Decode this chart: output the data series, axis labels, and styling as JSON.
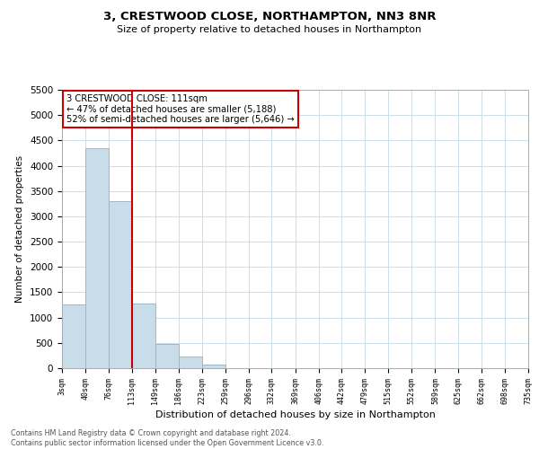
{
  "title": "3, CRESTWOOD CLOSE, NORTHAMPTON, NN3 8NR",
  "subtitle": "Size of property relative to detached houses in Northampton",
  "xlabel": "Distribution of detached houses by size in Northampton",
  "ylabel": "Number of detached properties",
  "bar_color": "#c8dcea",
  "bar_edge_color": "#9ab8cc",
  "vline_color": "#cc0000",
  "vline_x": 113,
  "bin_edges": [
    3,
    40,
    76,
    113,
    149,
    186,
    223,
    259,
    296,
    332,
    369,
    406,
    442,
    479,
    515,
    552,
    589,
    625,
    662,
    698,
    735
  ],
  "bar_heights": [
    1265,
    4340,
    3295,
    1285,
    480,
    235,
    75,
    0,
    0,
    0,
    0,
    0,
    0,
    0,
    0,
    0,
    0,
    0,
    0,
    0
  ],
  "ylim": [
    0,
    5500
  ],
  "yticks": [
    0,
    500,
    1000,
    1500,
    2000,
    2500,
    3000,
    3500,
    4000,
    4500,
    5000,
    5500
  ],
  "annotation_line1": "3 CRESTWOOD CLOSE: 111sqm",
  "annotation_line2": "← 47% of detached houses are smaller (5,188)",
  "annotation_line3": "52% of semi-detached houses are larger (5,646) →",
  "annotation_box_color": "#ffffff",
  "annotation_box_edgecolor": "#cc0000",
  "footer_text": "Contains HM Land Registry data © Crown copyright and database right 2024.\nContains public sector information licensed under the Open Government Licence v3.0.",
  "background_color": "#ffffff",
  "grid_color": "#ccdde8"
}
